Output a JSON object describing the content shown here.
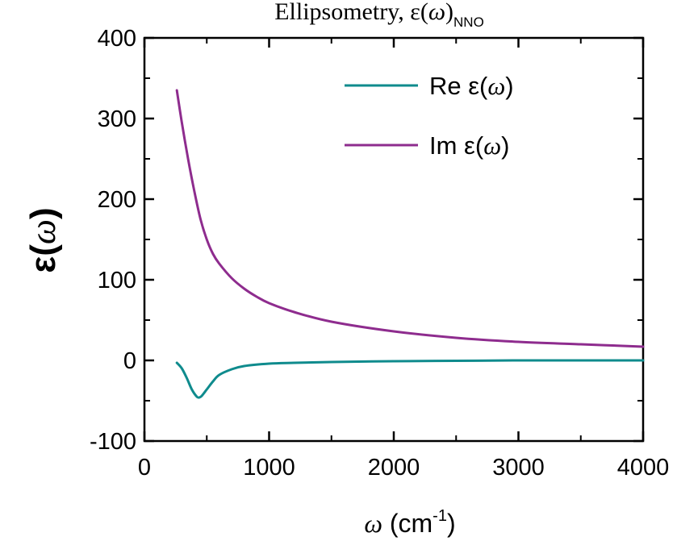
{
  "chart_data": {
    "type": "line",
    "title": {
      "main": "Ellipsometry, ε(",
      "omega": "ω",
      "close": ")",
      "sub": "NNO"
    },
    "ylabel": {
      "prefix": "ε(",
      "omega": "ω",
      "suffix": ")"
    },
    "xlabel": {
      "omega": "ω",
      "unit": " (cm",
      "sup": "-1",
      "close": ")"
    },
    "xlim": [
      0,
      4000
    ],
    "ylim": [
      -100,
      400
    ],
    "xticks": [
      0,
      1000,
      2000,
      3000,
      4000
    ],
    "yticks": [
      -100,
      0,
      100,
      200,
      300,
      400
    ],
    "xtick_labels": [
      "0",
      "1000",
      "2000",
      "3000",
      "4000"
    ],
    "ytick_labels": [
      "-100",
      "0",
      "100",
      "200",
      "300",
      "400"
    ],
    "grid": false,
    "legend_position": "top-right",
    "series": [
      {
        "name": "Re ε(ω)",
        "legend_prefix": "Re ε(",
        "legend_omega": "ω",
        "legend_suffix": ")",
        "color": "#0f8b8d",
        "x": [
          260,
          300,
          340,
          380,
          420,
          440,
          460,
          500,
          550,
          600,
          700,
          800,
          1000,
          1200,
          1500,
          2000,
          2500,
          3000,
          3500,
          4000
        ],
        "y": [
          -3,
          -10,
          -22,
          -36,
          -45,
          -46,
          -44,
          -36,
          -26,
          -18,
          -11,
          -7,
          -4,
          -3,
          -2,
          -1,
          -0.5,
          0,
          0,
          0
        ]
      },
      {
        "name": "Im ε(ω)",
        "legend_prefix": "Im ε(",
        "legend_omega": "ω",
        "legend_suffix": ")",
        "color": "#8e2c8e",
        "x": [
          260,
          300,
          350,
          400,
          450,
          500,
          550,
          600,
          700,
          800,
          900,
          1000,
          1200,
          1500,
          2000,
          2500,
          3000,
          3500,
          4000
        ],
        "y": [
          335,
          295,
          250,
          210,
          175,
          150,
          132,
          120,
          102,
          89,
          79,
          71,
          60,
          48,
          36,
          28,
          23,
          20,
          17
        ]
      }
    ]
  }
}
